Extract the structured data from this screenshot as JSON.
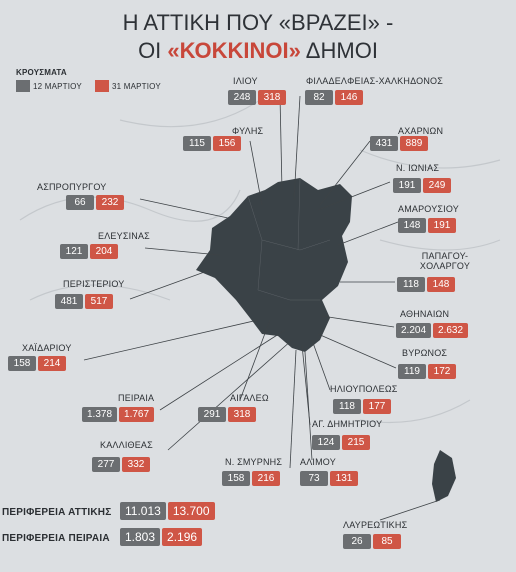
{
  "title": {
    "line1": "Η ΑΤΤΙΚΗ ΠΟΥ «ΒΡΑΖΕΙ» -",
    "line2_start": "ΟΙ",
    "line2_highlight": "«ΚΟΚΚΙΝΟΙ»",
    "line2_end": "ΔΗΜΟΙ"
  },
  "legend": {
    "title": "ΚΡΟΥΣΜΑΤΑ",
    "first": "12 ΜΑΡΤΙΟΥ",
    "second": "31 ΜΑΡΤΙΟΥ"
  },
  "municipalities": [
    {
      "name": "ΙΛΙΟΥ",
      "march12": "248",
      "march31": "318"
    },
    {
      "name": "ΦΙΛΑΔΕΛΦΕΙΑΣ-ΧΑΛΚΗΔΟΝΟΣ",
      "march12": "82",
      "march31": "146"
    },
    {
      "name": "ΦΥΛΗΣ",
      "march12": "115",
      "march31": "156"
    },
    {
      "name": "ΑΧΑΡΝΩΝ",
      "march12": "431",
      "march31": "889"
    },
    {
      "name": "Ν. ΙΩΝΙΑΣ",
      "march12": "191",
      "march31": "249"
    },
    {
      "name": "ΑΣΠΡΟΠΥΡΓΟΥ",
      "march12": "66",
      "march31": "232"
    },
    {
      "name": "ΑΜΑΡΟΥΣΙΟΥ",
      "march12": "148",
      "march31": "191"
    },
    {
      "name": "ΕΛΕΥΣΙΝΑΣ",
      "march12": "121",
      "march31": "204"
    },
    {
      "name": "ΠΑΠΑΓΟΥ-ΧΟΛΑΡΓΟΥ",
      "march12": "118",
      "march31": "148"
    },
    {
      "name": "ΠΕΡΙΣΤΕΡΙΟΥ",
      "march12": "481",
      "march31": "517"
    },
    {
      "name": "ΑΘΗΝΑΙΩΝ",
      "march12": "2.204",
      "march31": "2.632"
    },
    {
      "name": "ΧΑΪΔΑΡΙΟΥ",
      "march12": "158",
      "march31": "214"
    },
    {
      "name": "ΒΥΡΩΝΟΣ",
      "march12": "119",
      "march31": "172"
    },
    {
      "name": "ΗΛΙΟΥΠΟΛΕΩΣ",
      "march12": "118",
      "march31": "177"
    },
    {
      "name": "ΠΕΙΡΑΙΑ",
      "march12": "1.378",
      "march31": "1.767"
    },
    {
      "name": "ΑΙΓΑΛΕΩ",
      "march12": "291",
      "march31": "318"
    },
    {
      "name": "ΑΓ. ΔΗΜΗΤΡΙΟΥ",
      "march12": "124",
      "march31": "215"
    },
    {
      "name": "ΚΑΛΛΙΘΕΑΣ",
      "march12": "277",
      "march31": "332"
    },
    {
      "name": "Ν. ΣΜΥΡΝΗΣ",
      "march12": "158",
      "march31": "216"
    },
    {
      "name": "ΑΛΙΜΟΥ",
      "march12": "73",
      "march31": "131"
    },
    {
      "name": "ΛΑΥΡΕΩΤΙΚΗΣ",
      "march12": "26",
      "march31": "85"
    }
  ],
  "totals": [
    {
      "name": "ΠΕΡΙΦΕΡΕΙΑ ΑΤΤΙΚΗΣ",
      "march12": "11.013",
      "march31": "13.700"
    },
    {
      "name": "ΠΕΡΙΦΕΡΕΙΑ ΠΕΙΡΑΙΑ",
      "march12": "1.803",
      "march31": "2.196"
    }
  ]
}
